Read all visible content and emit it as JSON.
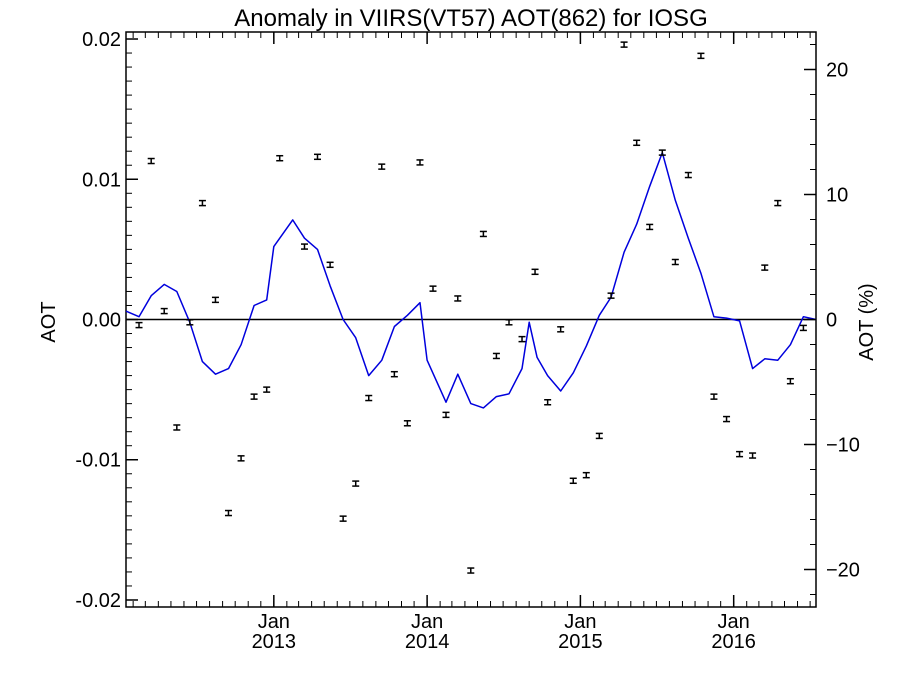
{
  "chart_data": {
    "type": "scatter",
    "title": "Anomaly in VIIRS(VT57) AOT(862) for IOSG",
    "ylabel": "AOT",
    "ylabel_right": "AOT (%)",
    "xlim": [
      "2012-01-15",
      "2016-07-15"
    ],
    "ylim": [
      -0.0205,
      0.0205
    ],
    "ylim_right": [
      -23.0,
      23.0
    ],
    "x_ticks": [
      {
        "date": "2013-01-01",
        "month": "Jan",
        "year": "2013"
      },
      {
        "date": "2014-01-01",
        "month": "Jan",
        "year": "2014"
      },
      {
        "date": "2015-01-01",
        "month": "Jan",
        "year": "2015"
      },
      {
        "date": "2016-01-01",
        "month": "Jan",
        "year": "2016"
      }
    ],
    "y_ticks": [
      "-0.02",
      "-0.01",
      "0.00",
      "0.01",
      "0.02"
    ],
    "y_ticks_right": [
      "−20",
      "−10",
      "0",
      "10",
      "20"
    ],
    "zero_line": true,
    "colors": {
      "line": "#0000dd",
      "points": "#000000",
      "axis": "#000000",
      "zero": "#000000"
    },
    "series": [
      {
        "name": "",
        "style": "errorbar",
        "points": [
          {
            "date": "2012-02-15",
            "y": -0.0004
          },
          {
            "date": "2012-03-15",
            "y": 0.0113
          },
          {
            "date": "2012-04-15",
            "y": 0.0006
          },
          {
            "date": "2012-05-15",
            "y": -0.0077
          },
          {
            "date": "2012-06-15",
            "y": -0.0002
          },
          {
            "date": "2012-07-15",
            "y": 0.0083
          },
          {
            "date": "2012-08-15",
            "y": 0.0014
          },
          {
            "date": "2012-09-15",
            "y": -0.0138
          },
          {
            "date": "2012-10-15",
            "y": -0.0099
          },
          {
            "date": "2012-11-15",
            "y": -0.0055
          },
          {
            "date": "2012-12-15",
            "y": -0.005
          },
          {
            "date": "2013-01-15",
            "y": 0.0115
          },
          {
            "date": "2013-03-15",
            "y": 0.0052
          },
          {
            "date": "2013-04-15",
            "y": 0.0116
          },
          {
            "date": "2013-05-15",
            "y": 0.0039
          },
          {
            "date": "2013-06-15",
            "y": -0.0142
          },
          {
            "date": "2013-07-15",
            "y": -0.0117
          },
          {
            "date": "2013-08-15",
            "y": -0.0056
          },
          {
            "date": "2013-09-15",
            "y": 0.0109
          },
          {
            "date": "2013-10-15",
            "y": -0.0039
          },
          {
            "date": "2013-11-15",
            "y": -0.0074
          },
          {
            "date": "2013-12-15",
            "y": 0.0112
          },
          {
            "date": "2014-01-15",
            "y": 0.0022
          },
          {
            "date": "2014-02-15",
            "y": -0.0068
          },
          {
            "date": "2014-03-15",
            "y": 0.0015
          },
          {
            "date": "2014-04-15",
            "y": -0.0179
          },
          {
            "date": "2014-05-15",
            "y": 0.0061
          },
          {
            "date": "2014-06-15",
            "y": -0.0026
          },
          {
            "date": "2014-07-15",
            "y": -0.0002
          },
          {
            "date": "2014-08-15",
            "y": -0.0014
          },
          {
            "date": "2014-09-15",
            "y": 0.0034
          },
          {
            "date": "2014-10-15",
            "y": -0.0059
          },
          {
            "date": "2014-11-15",
            "y": -0.0007
          },
          {
            "date": "2014-12-15",
            "y": -0.0115
          },
          {
            "date": "2015-01-15",
            "y": -0.0111
          },
          {
            "date": "2015-02-15",
            "y": -0.0083
          },
          {
            "date": "2015-03-15",
            "y": 0.0017
          },
          {
            "date": "2015-04-15",
            "y": 0.0196
          },
          {
            "date": "2015-05-15",
            "y": 0.0126
          },
          {
            "date": "2015-06-15",
            "y": 0.0066
          },
          {
            "date": "2015-07-15",
            "y": 0.0119
          },
          {
            "date": "2015-08-15",
            "y": 0.0041
          },
          {
            "date": "2015-09-15",
            "y": 0.0103
          },
          {
            "date": "2015-10-15",
            "y": 0.0188
          },
          {
            "date": "2015-11-15",
            "y": -0.0055
          },
          {
            "date": "2015-12-15",
            "y": -0.0071
          },
          {
            "date": "2016-01-15",
            "y": -0.0096
          },
          {
            "date": "2016-02-15",
            "y": -0.0097
          },
          {
            "date": "2016-03-15",
            "y": 0.0037
          },
          {
            "date": "2016-04-15",
            "y": 0.0083
          },
          {
            "date": "2016-05-15",
            "y": -0.0044
          },
          {
            "date": "2016-06-15",
            "y": -0.0006
          }
        ]
      },
      {
        "name": "",
        "style": "line",
        "points": [
          {
            "date": "2012-01-15",
            "y": 0.0006
          },
          {
            "date": "2012-02-15",
            "y": 0.0002
          },
          {
            "date": "2012-03-15",
            "y": 0.0017
          },
          {
            "date": "2012-04-15",
            "y": 0.0025
          },
          {
            "date": "2012-05-15",
            "y": 0.002
          },
          {
            "date": "2012-06-15",
            "y": -0.0002
          },
          {
            "date": "2012-07-15",
            "y": -0.003
          },
          {
            "date": "2012-08-15",
            "y": -0.0039
          },
          {
            "date": "2012-09-15",
            "y": -0.0035
          },
          {
            "date": "2012-10-15",
            "y": -0.0018
          },
          {
            "date": "2012-11-15",
            "y": 0.001
          },
          {
            "date": "2012-12-15",
            "y": 0.0014
          },
          {
            "date": "2013-01-01",
            "y": 0.0052
          },
          {
            "date": "2013-02-15",
            "y": 0.0071
          },
          {
            "date": "2013-03-15",
            "y": 0.0058
          },
          {
            "date": "2013-04-15",
            "y": 0.005
          },
          {
            "date": "2013-05-15",
            "y": 0.0024
          },
          {
            "date": "2013-06-15",
            "y": 0.0
          },
          {
            "date": "2013-07-15",
            "y": -0.0013
          },
          {
            "date": "2013-08-15",
            "y": -0.004
          },
          {
            "date": "2013-09-15",
            "y": -0.0029
          },
          {
            "date": "2013-10-15",
            "y": -0.0005
          },
          {
            "date": "2013-11-15",
            "y": 0.0003
          },
          {
            "date": "2013-12-15",
            "y": 0.0012
          },
          {
            "date": "2014-01-01",
            "y": -0.0029
          },
          {
            "date": "2014-02-15",
            "y": -0.0059
          },
          {
            "date": "2014-03-15",
            "y": -0.0039
          },
          {
            "date": "2014-04-15",
            "y": -0.006
          },
          {
            "date": "2014-05-15",
            "y": -0.0063
          },
          {
            "date": "2014-06-15",
            "y": -0.0055
          },
          {
            "date": "2014-07-15",
            "y": -0.0053
          },
          {
            "date": "2014-08-15",
            "y": -0.0035
          },
          {
            "date": "2014-09-01",
            "y": -0.0002
          },
          {
            "date": "2014-09-20",
            "y": -0.0027
          },
          {
            "date": "2014-10-15",
            "y": -0.004
          },
          {
            "date": "2014-11-15",
            "y": -0.0051
          },
          {
            "date": "2014-12-15",
            "y": -0.0038
          },
          {
            "date": "2015-01-15",
            "y": -0.0019
          },
          {
            "date": "2015-02-15",
            "y": 0.0003
          },
          {
            "date": "2015-03-15",
            "y": 0.0016
          },
          {
            "date": "2015-04-15",
            "y": 0.0048
          },
          {
            "date": "2015-05-15",
            "y": 0.0068
          },
          {
            "date": "2015-06-15",
            "y": 0.0095
          },
          {
            "date": "2015-07-15",
            "y": 0.0119
          },
          {
            "date": "2015-08-15",
            "y": 0.0085
          },
          {
            "date": "2015-09-15",
            "y": 0.0058
          },
          {
            "date": "2015-10-15",
            "y": 0.0033
          },
          {
            "date": "2015-11-15",
            "y": 0.0002
          },
          {
            "date": "2015-12-15",
            "y": 0.0001
          },
          {
            "date": "2016-01-15",
            "y": -0.0001
          },
          {
            "date": "2016-02-15",
            "y": -0.0035
          },
          {
            "date": "2016-03-15",
            "y": -0.0028
          },
          {
            "date": "2016-04-15",
            "y": -0.0029
          },
          {
            "date": "2016-05-15",
            "y": -0.0018
          },
          {
            "date": "2016-06-15",
            "y": 0.0002
          },
          {
            "date": "2016-07-15",
            "y": 0.0
          }
        ]
      }
    ]
  }
}
